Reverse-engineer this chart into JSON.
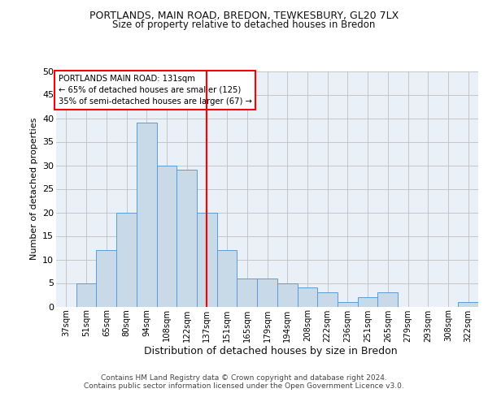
{
  "title_line1": "PORTLANDS, MAIN ROAD, BREDON, TEWKESBURY, GL20 7LX",
  "title_line2": "Size of property relative to detached houses in Bredon",
  "xlabel": "Distribution of detached houses by size in Bredon",
  "ylabel": "Number of detached properties",
  "footer_line1": "Contains HM Land Registry data © Crown copyright and database right 2024.",
  "footer_line2": "Contains public sector information licensed under the Open Government Licence v3.0.",
  "categories": [
    "37sqm",
    "51sqm",
    "65sqm",
    "80sqm",
    "94sqm",
    "108sqm",
    "122sqm",
    "137sqm",
    "151sqm",
    "165sqm",
    "179sqm",
    "194sqm",
    "208sqm",
    "222sqm",
    "236sqm",
    "251sqm",
    "265sqm",
    "279sqm",
    "293sqm",
    "308sqm",
    "322sqm"
  ],
  "values": [
    0,
    5,
    12,
    20,
    39,
    30,
    29,
    20,
    12,
    6,
    6,
    5,
    4,
    3,
    1,
    2,
    3,
    0,
    0,
    0,
    1
  ],
  "bar_color": "#c8d9e8",
  "bar_edge_color": "#5b9bd5",
  "vline_x": 7,
  "vline_color": "red",
  "annotation_title": "PORTLANDS MAIN ROAD: 131sqm",
  "annotation_line1": "← 65% of detached houses are smaller (125)",
  "annotation_line2": "35% of semi-detached houses are larger (67) →",
  "annotation_box_color": "white",
  "annotation_box_edge": "red",
  "ylim": [
    0,
    50
  ],
  "yticks": [
    0,
    5,
    10,
    15,
    20,
    25,
    30,
    35,
    40,
    45,
    50
  ],
  "grid_color": "#c0c0c0",
  "background_color": "#eaf0f7",
  "fig_background": "#ffffff"
}
